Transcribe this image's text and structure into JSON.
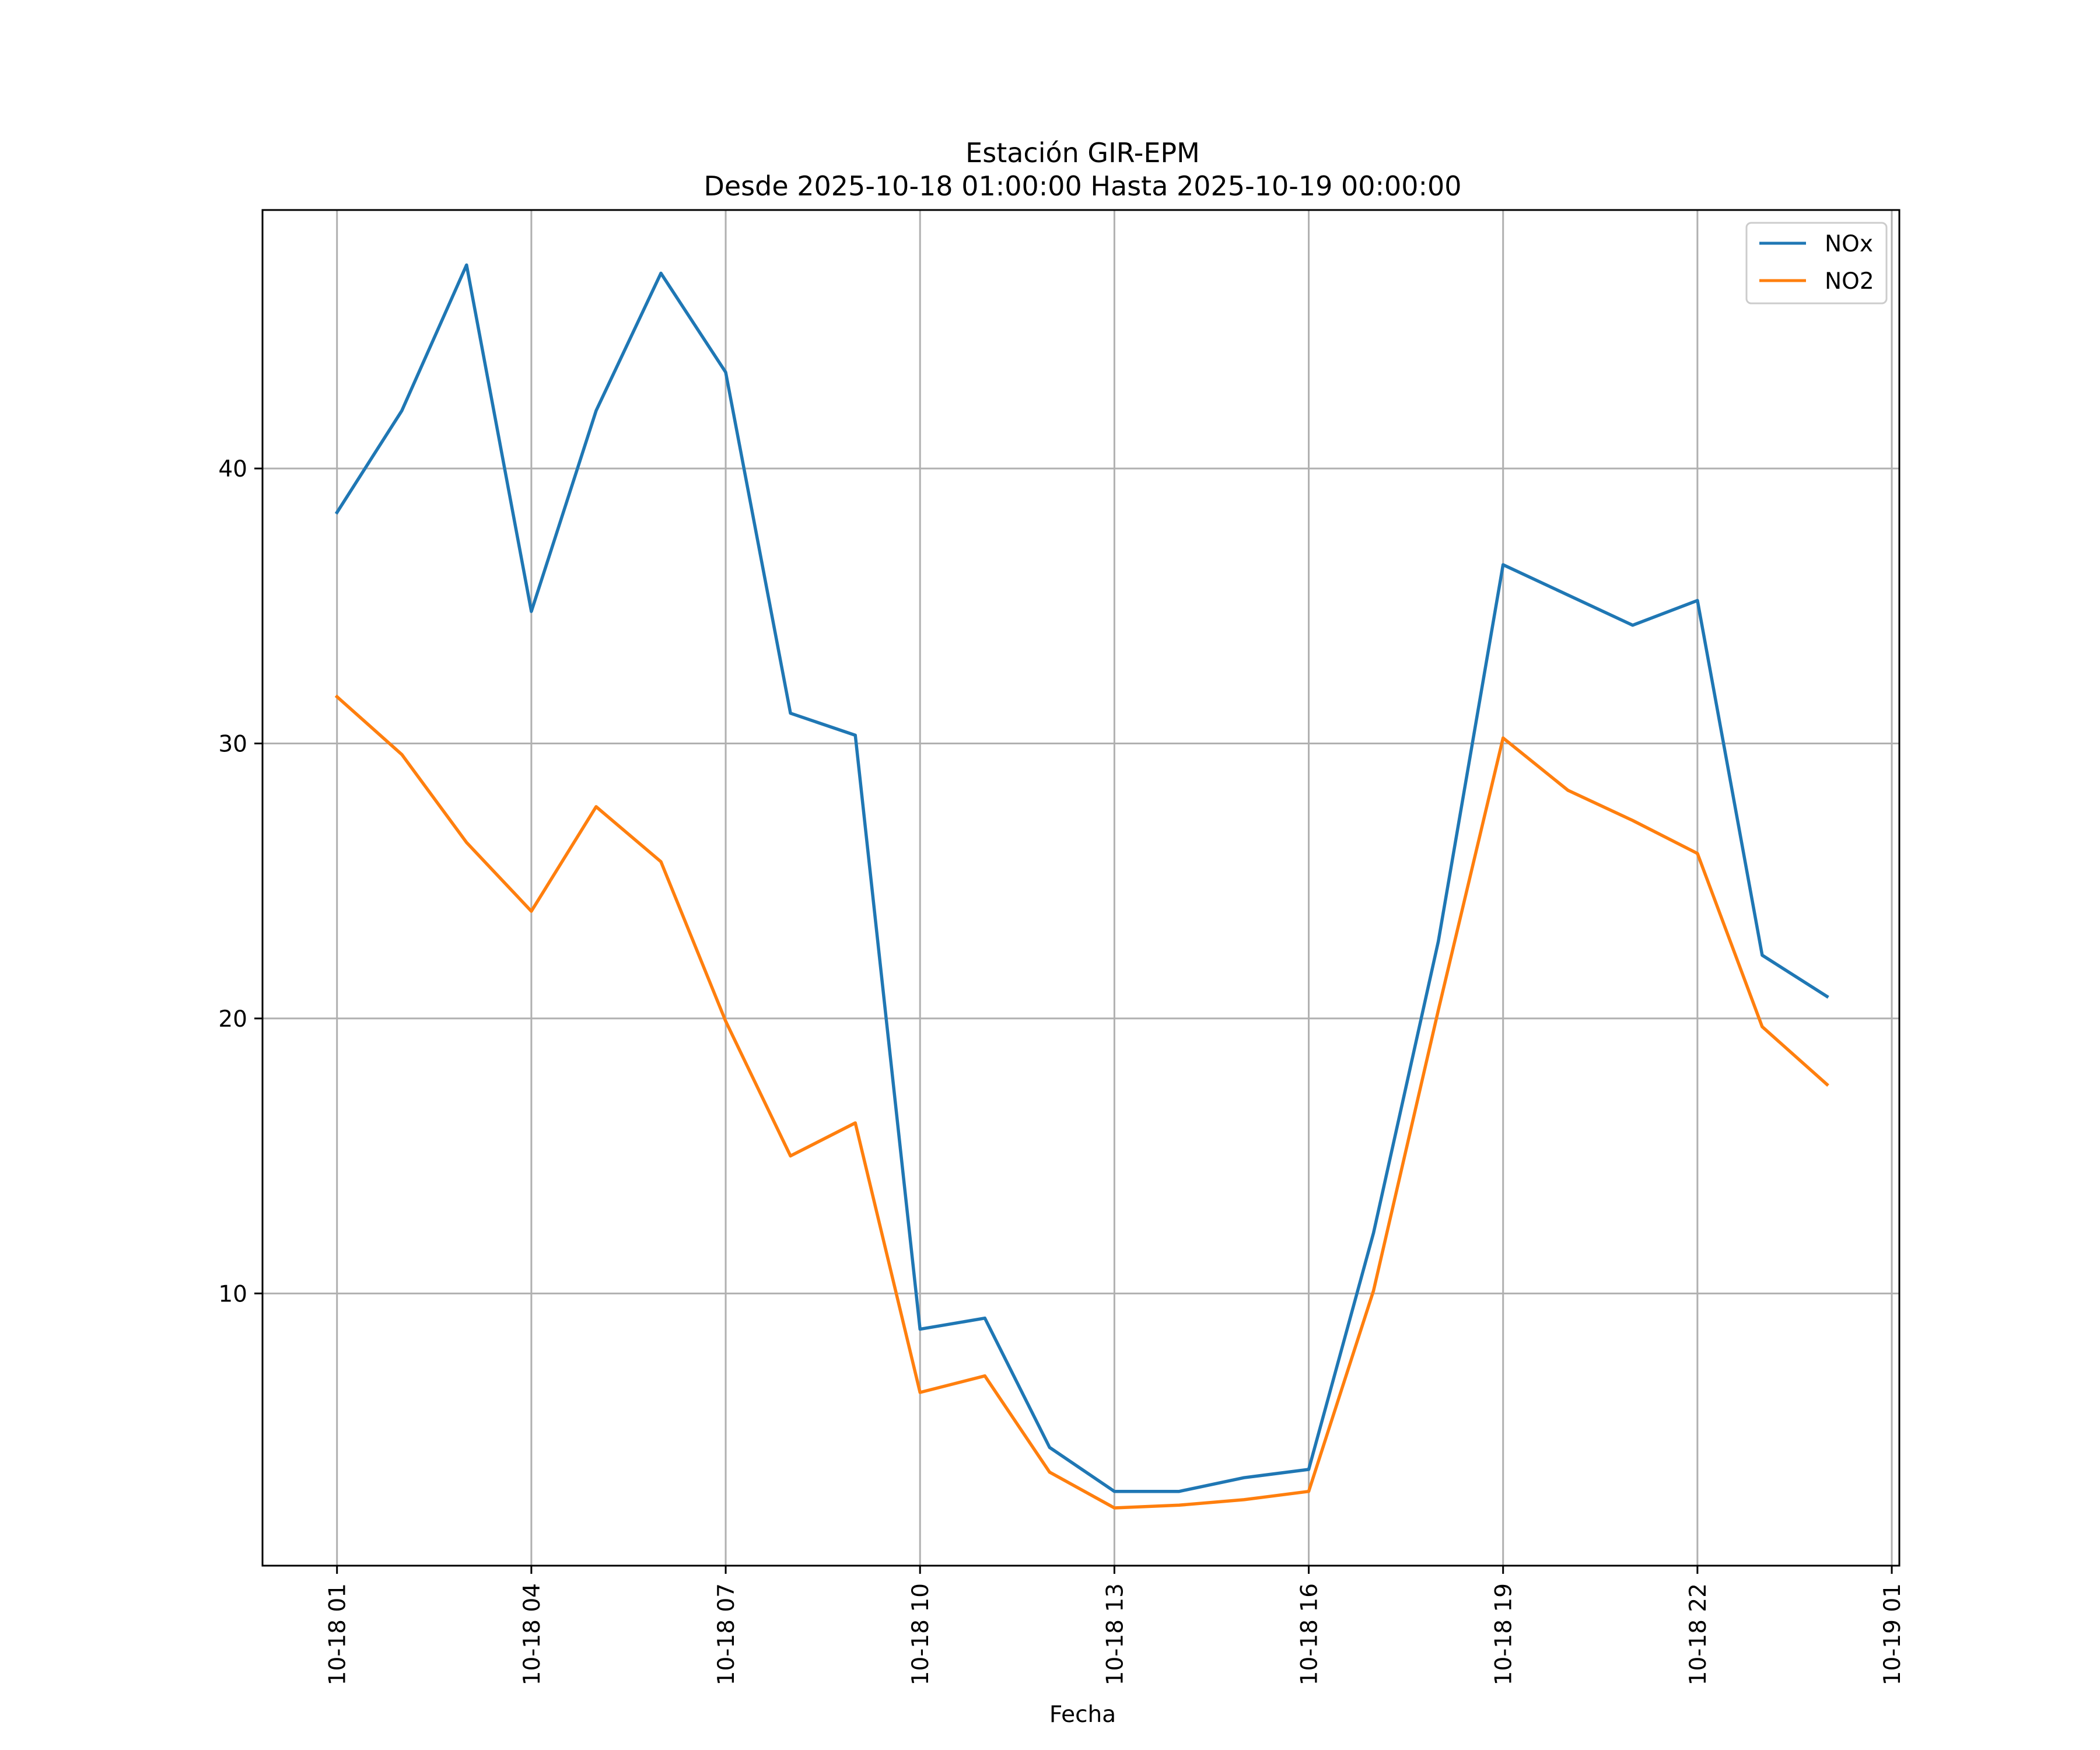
{
  "chart_data": {
    "type": "line",
    "title": "Estación GIR-EPM",
    "subtitle": "Desde 2025-10-18 01:00:00 Hasta 2025-10-19 00:00:00",
    "xlabel": "Fecha",
    "ylabel": "",
    "x": [
      "2025-10-18 01:00",
      "2025-10-18 02:00",
      "2025-10-18 03:00",
      "2025-10-18 04:00",
      "2025-10-18 05:00",
      "2025-10-18 06:00",
      "2025-10-18 07:00",
      "2025-10-18 08:00",
      "2025-10-18 09:00",
      "2025-10-18 10:00",
      "2025-10-18 11:00",
      "2025-10-18 12:00",
      "2025-10-18 13:00",
      "2025-10-18 14:00",
      "2025-10-18 15:00",
      "2025-10-18 16:00",
      "2025-10-18 17:00",
      "2025-10-18 18:00",
      "2025-10-18 19:00",
      "2025-10-18 20:00",
      "2025-10-18 21:00",
      "2025-10-18 22:00",
      "2025-10-18 23:00",
      "2025-10-19 00:00"
    ],
    "x_ticks": [
      "2025-10-18 01:00",
      "2025-10-18 04:00",
      "2025-10-18 07:00",
      "2025-10-18 10:00",
      "2025-10-18 13:00",
      "2025-10-18 16:00",
      "2025-10-18 19:00",
      "2025-10-18 22:00",
      "2025-10-19 01:00"
    ],
    "x_tick_labels": [
      "10-18 01",
      "10-18 04",
      "10-18 07",
      "10-18 10",
      "10-18 13",
      "10-18 16",
      "10-18 19",
      "10-18 22",
      "10-19 01"
    ],
    "xlim": [
      "2025-10-17 23:51",
      "2025-10-19 01:07"
    ],
    "y_ticks": [
      10,
      20,
      30,
      40
    ],
    "ylim": [
      0.1,
      49.4
    ],
    "grid": true,
    "legend_position": "top-right",
    "series": [
      {
        "name": "NOx",
        "color": "#1f77b4",
        "values": [
          38.4,
          42.1,
          47.4,
          34.8,
          42.1,
          47.1,
          43.5,
          31.1,
          30.3,
          8.7,
          9.1,
          4.4,
          2.8,
          2.8,
          3.3,
          3.6,
          12.2,
          22.8,
          36.5,
          35.4,
          34.3,
          35.2,
          22.3,
          20.8
        ]
      },
      {
        "name": "NO2",
        "color": "#ff7f0e",
        "values": [
          31.7,
          29.6,
          26.4,
          23.9,
          27.7,
          25.7,
          19.9,
          15.0,
          16.2,
          6.4,
          7.0,
          3.5,
          2.2,
          2.3,
          2.5,
          2.8,
          10.1,
          20.3,
          30.2,
          28.3,
          27.2,
          26.0,
          19.7,
          17.6
        ]
      }
    ]
  }
}
